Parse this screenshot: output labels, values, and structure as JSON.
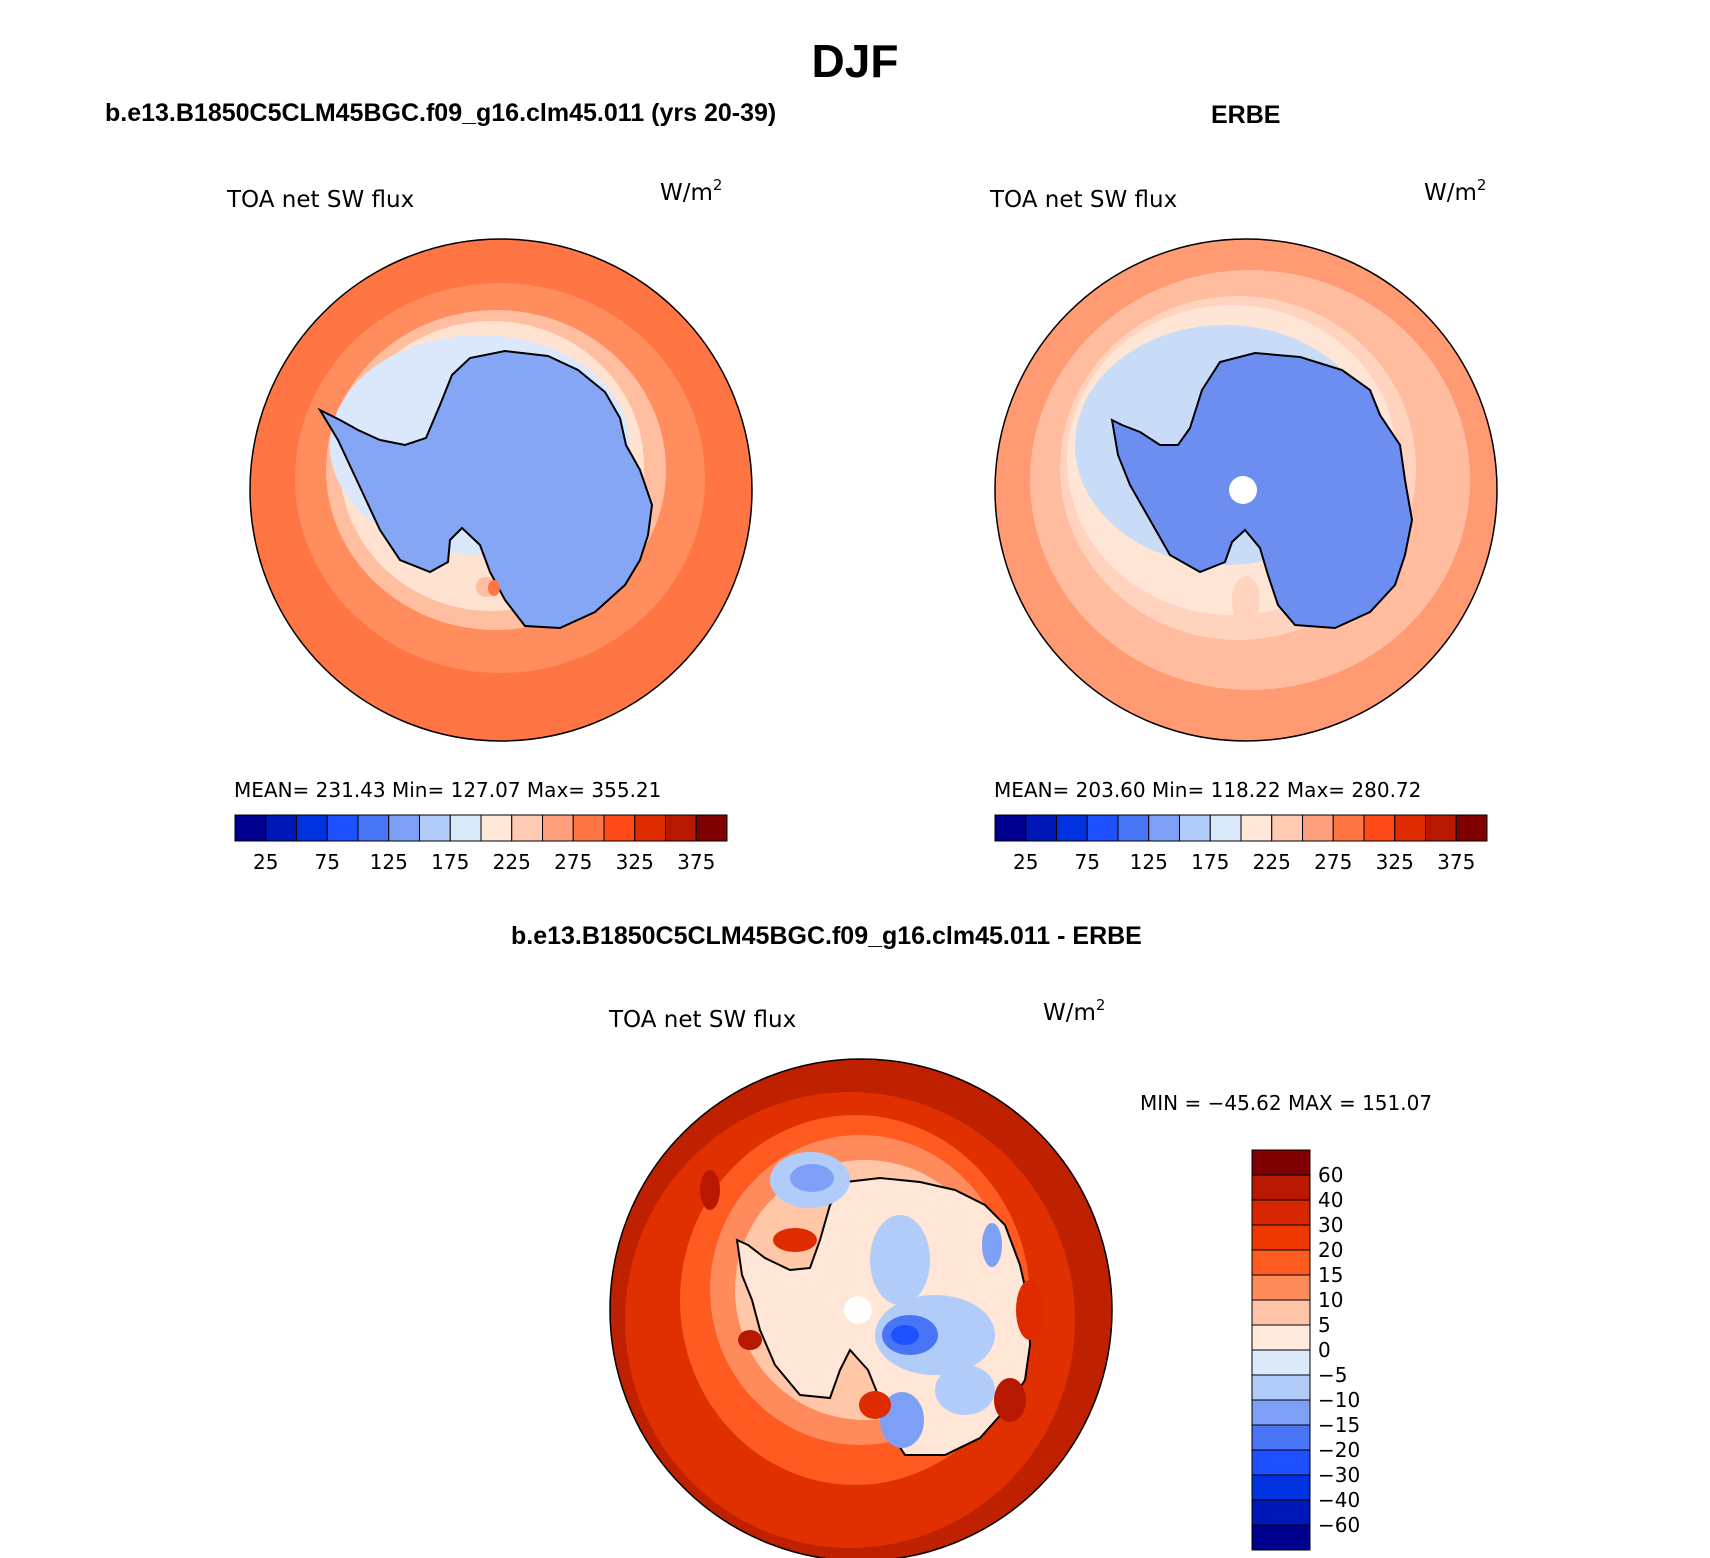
{
  "title": "DJF",
  "colors": {
    "land_model": "#85a6f5",
    "land_obs": "#6b8ef0",
    "coast": "#000000",
    "pole_hole": "#ffffff"
  },
  "panels": [
    {
      "id": "model",
      "title": "b.e13.B1850C5CLM45BGC.f09_g16.clm45.011 (yrs 20-39)",
      "variable": "TOA net SW flux",
      "units": "W/m",
      "units_sup": "2",
      "stats": "MEAN= 231.43   Min= 127.07   Max= 355.21",
      "ring_colors": [
        "#ff7543",
        "#ff8d5e",
        "#ffbea0",
        "#ffe2d0",
        "#dbe8fb"
      ]
    },
    {
      "id": "obs",
      "title": "ERBE",
      "variable": "TOA net SW flux",
      "units": "W/m",
      "units_sup": "2",
      "stats": "MEAN= 203.60   Min= 118.22   Max= 280.72",
      "ring_colors": [
        "#ff9a72",
        "#ffbc9e",
        "#ffd3be",
        "#ffe5d5",
        "#c8dcf8"
      ]
    },
    {
      "id": "diff",
      "title": "b.e13.B1850C5CLM45BGC.f09_g16.clm45.011 - ERBE",
      "variable": "TOA net SW flux",
      "units": "W/m",
      "units_sup": "2",
      "stats": "MIN = −45.62 MAX = 151.07",
      "ring_colors": [
        "#bf2000",
        "#e13000",
        "#ff5a20",
        "#ff8a5c",
        "#ffc7a8"
      ]
    }
  ],
  "colorbar_horizontal": {
    "colors": [
      "#00008f",
      "#0018b8",
      "#0032e0",
      "#1f50ff",
      "#4775f5",
      "#7da0f6",
      "#b2ccf9",
      "#dbeafb",
      "#ffe8d8",
      "#ffcbb3",
      "#ff9f7d",
      "#ff7543",
      "#ff4a17",
      "#df2b00",
      "#b81800",
      "#7f0000"
    ],
    "labels": [
      "25",
      "75",
      "125",
      "175",
      "225",
      "275",
      "325",
      "375"
    ]
  },
  "colorbar_vertical": {
    "colors": [
      "#7f0000",
      "#b81800",
      "#d82600",
      "#ef3800",
      "#ff5a20",
      "#ff8a5c",
      "#ffc4a8",
      "#ffebdd",
      "#dbeafb",
      "#b2ccf9",
      "#7da0f6",
      "#4775f5",
      "#1f50ff",
      "#0032e0",
      "#0018b8",
      "#00008f"
    ],
    "labels": [
      "60",
      "40",
      "30",
      "20",
      "15",
      "10",
      "5",
      "0",
      "−5",
      "−10",
      "−15",
      "−20",
      "−30",
      "−40",
      "−60"
    ]
  }
}
